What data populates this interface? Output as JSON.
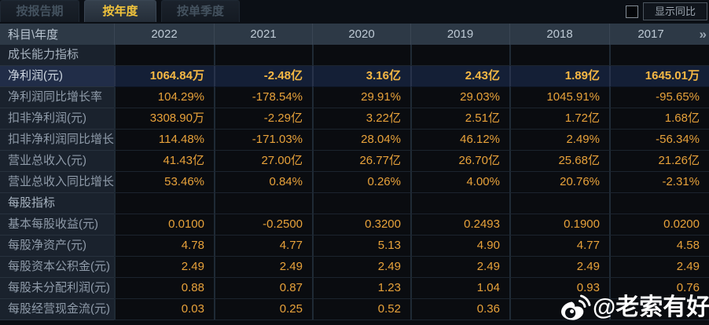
{
  "tabs": [
    {
      "label": "按报告期",
      "active": false
    },
    {
      "label": "按年度",
      "active": true
    },
    {
      "label": "按单季度",
      "active": false
    }
  ],
  "controls": {
    "show_yoy_label": "显示同比",
    "checkbox_checked": false
  },
  "table": {
    "corner_header": "科目\\年度",
    "year_columns": [
      "2022",
      "2021",
      "2020",
      "2019",
      "2018",
      "2017"
    ],
    "more_icon": "»",
    "rows": [
      {
        "type": "section",
        "label": "成长能力指标"
      },
      {
        "type": "data",
        "label": "净利润(元)",
        "highlight": true,
        "values": [
          "1064.84万",
          "-2.48亿",
          "3.16亿",
          "2.43亿",
          "1.89亿",
          "1645.01万"
        ]
      },
      {
        "type": "data",
        "label": "净利润同比增长率",
        "values": [
          "104.29%",
          "-178.54%",
          "29.91%",
          "29.03%",
          "1045.91%",
          "-95.65%"
        ]
      },
      {
        "type": "data",
        "label": "扣非净利润(元)",
        "values": [
          "3308.90万",
          "-2.29亿",
          "3.22亿",
          "2.51亿",
          "1.72亿",
          "1.68亿"
        ]
      },
      {
        "type": "data",
        "label": "扣非净利润同比增长率",
        "values": [
          "114.48%",
          "-171.03%",
          "28.04%",
          "46.12%",
          "2.49%",
          "-56.34%"
        ]
      },
      {
        "type": "data",
        "label": "营业总收入(元)",
        "values": [
          "41.43亿",
          "27.00亿",
          "26.77亿",
          "26.70亿",
          "25.68亿",
          "21.26亿"
        ]
      },
      {
        "type": "data",
        "label": "营业总收入同比增长率",
        "values": [
          "53.46%",
          "0.84%",
          "0.26%",
          "4.00%",
          "20.76%",
          "-2.31%"
        ]
      },
      {
        "type": "section",
        "label": "每股指标"
      },
      {
        "type": "data",
        "label": "基本每股收益(元)",
        "values": [
          "0.0100",
          "-0.2500",
          "0.3200",
          "0.2493",
          "0.1900",
          "0.0200"
        ]
      },
      {
        "type": "data",
        "label": "每股净资产(元)",
        "values": [
          "4.78",
          "4.77",
          "5.13",
          "4.90",
          "4.77",
          "4.58"
        ]
      },
      {
        "type": "data",
        "label": "每股资本公积金(元)",
        "values": [
          "2.49",
          "2.49",
          "2.49",
          "2.49",
          "2.49",
          "2.49"
        ]
      },
      {
        "type": "data",
        "label": "每股未分配利润(元)",
        "values": [
          "0.88",
          "0.87",
          "1.23",
          "1.04",
          "0.93",
          "0.76"
        ]
      },
      {
        "type": "data",
        "label": "每股经营现金流(元)",
        "values": [
          "0.03",
          "0.25",
          "0.52",
          "0.36",
          "",
          ""
        ]
      }
    ]
  },
  "watermark": {
    "handle": "@老索有好股"
  },
  "colors": {
    "accent_gold": "#e8a23a",
    "highlight_gold": "#f6b844",
    "active_tab_text": "#f2c43c",
    "header_bg": "#2d3946",
    "highlight_row_bg": "#141f36",
    "label_cell_bg": "#1a222d"
  }
}
